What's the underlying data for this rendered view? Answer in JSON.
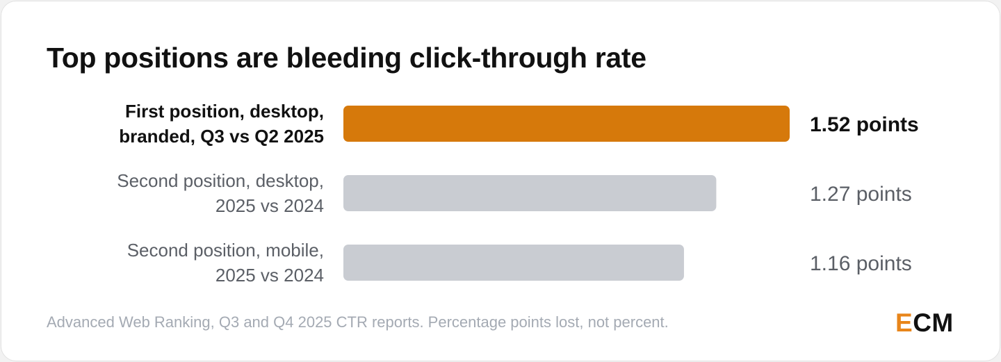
{
  "chart_data": {
    "type": "bar",
    "orientation": "horizontal",
    "title": "Top positions are bleeding click-through rate",
    "categories": [
      [
        "First position, desktop,",
        "branded, Q3 vs Q2 2025"
      ],
      [
        "Second position, desktop,",
        "2025 vs 2024"
      ],
      [
        "Second position, mobile,",
        "2025 vs 2024"
      ]
    ],
    "values": [
      1.52,
      1.27,
      1.16
    ],
    "value_labels": [
      "1.52 points",
      "1.27 points",
      "1.16 points"
    ],
    "highlight_index": 0,
    "xlim": [
      0,
      1.52
    ],
    "grid": false,
    "colors": {
      "highlight": "#d6790b",
      "default": "#c9ccd2",
      "highlight_text": "#111111",
      "default_text": "#5b5f66"
    }
  },
  "footer": {
    "source": "Advanced Web Ranking, Q3 and Q4 2025 CTR reports. Percentage points lost, not percent."
  },
  "logo": {
    "accent": "E",
    "rest": "CM",
    "accent_color": "#e8851a"
  }
}
